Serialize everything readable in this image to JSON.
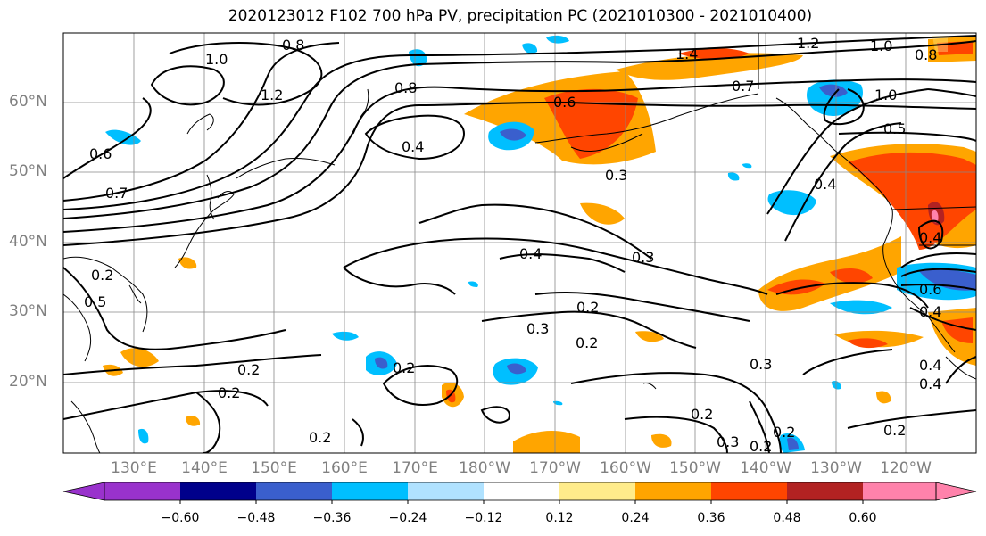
{
  "title": "2020123012 F102 700 hPa PV, precipitation PC (2021010300 - 2021010400)",
  "latitude_labels": [
    "60°N",
    "50°N",
    "40°N",
    "30°N",
    "20°N"
  ],
  "longitude_labels": [
    "130°E",
    "140°E",
    "150°E",
    "160°E",
    "170°E",
    "180°W",
    "170°W",
    "160°W",
    "150°W",
    "140°W",
    "130°W",
    "120°W"
  ],
  "contour_labels": [
    "0.8",
    "1.0",
    "1.2",
    "0.6",
    "0.7",
    "0.8",
    "0.4",
    "0.6",
    "0.7",
    "1.4",
    "1.2",
    "1.0",
    "0.8",
    "1.0",
    "0.5",
    "0.3",
    "0.4",
    "0.4",
    "0.3",
    "0.4",
    "0.2",
    "0.3",
    "0.2",
    "0.5",
    "0.2",
    "0.2",
    "0.2",
    "0.2",
    "0.2",
    "0.3",
    "0.2",
    "0.2",
    "0.3",
    "0.2",
    "0.4",
    "0.4",
    "0.6",
    "0.2",
    "0.4"
  ],
  "colorbar": {
    "tick_labels": [
      "−0.60",
      "−0.48",
      "−0.36",
      "−0.24",
      "−0.12",
      "0.12",
      "0.24",
      "0.36",
      "0.48",
      "0.60"
    ],
    "colors": [
      "#9932cc",
      "#00008b",
      "#3a5fcd",
      "#00bfff",
      "#b0e2ff",
      "#ffffff",
      "#ffec8b",
      "#ffa500",
      "#ff4500",
      "#b22222",
      "#ff82ab"
    ]
  }
}
